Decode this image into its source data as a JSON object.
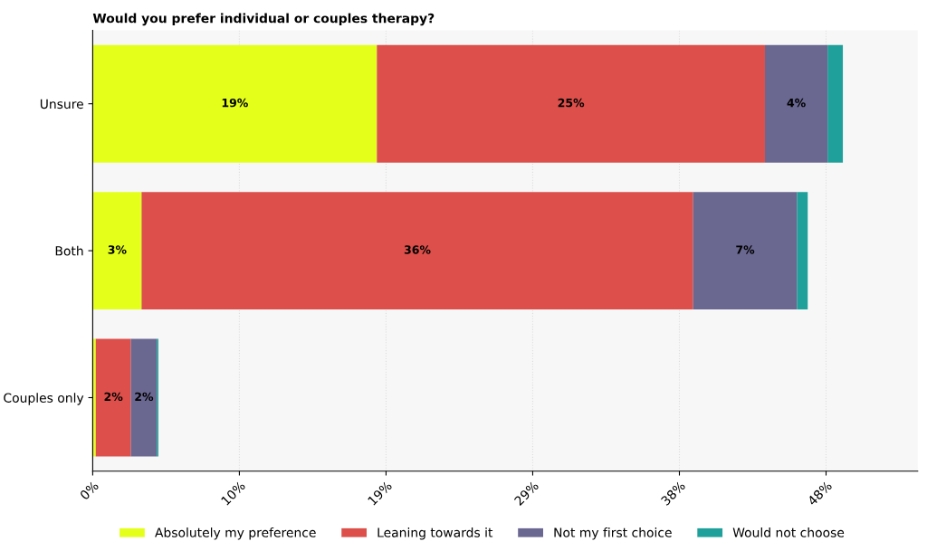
{
  "chart_data": {
    "type": "bar",
    "orientation": "horizontal",
    "stacked": true,
    "title": "Would you prefer individual or couples therapy?",
    "categories": [
      "Unsure",
      "Both",
      "Couples only"
    ],
    "series": [
      {
        "name": "Absolutely my preference",
        "color": "#e3ff1a",
        "values": [
          18.6,
          3.2,
          0.2
        ],
        "value_labels": [
          "19%",
          "3%",
          null
        ]
      },
      {
        "name": "Leaning towards it",
        "color": "#dd4f4a",
        "values": [
          25.4,
          36.1,
          2.3
        ],
        "value_labels": [
          "25%",
          "36%",
          "2%"
        ]
      },
      {
        "name": "Not my first choice",
        "color": "#6a6791",
        "values": [
          4.1,
          6.8,
          1.7
        ],
        "value_labels": [
          "4%",
          "7%",
          "2%"
        ]
      },
      {
        "name": "Would not choose",
        "color": "#1fa09a",
        "values": [
          1.0,
          0.7,
          0.1
        ],
        "value_labels": [
          null,
          null,
          null
        ]
      }
    ],
    "xlim": [
      0,
      54
    ],
    "xticks": [
      {
        "value": 0,
        "label": "0%"
      },
      {
        "value": 9.6,
        "label": "10%"
      },
      {
        "value": 19.2,
        "label": "19%"
      },
      {
        "value": 28.8,
        "label": "29%"
      },
      {
        "value": 38.4,
        "label": "38%"
      },
      {
        "value": 48.0,
        "label": "48%"
      }
    ],
    "grid": "x",
    "legend": "bottom"
  }
}
